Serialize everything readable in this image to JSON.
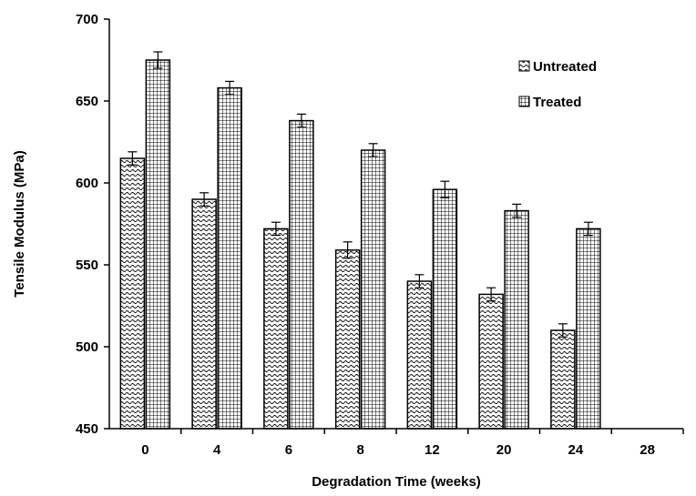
{
  "chart_data": {
    "type": "bar",
    "xlabel": "Degradation Time (weeks)",
    "ylabel": "Tensile Modulus (MPa)",
    "ylim": [
      450,
      700
    ],
    "yticks": [
      "450",
      "500",
      "550",
      "600",
      "650",
      "700"
    ],
    "categories": [
      "0",
      "4",
      "6",
      "8",
      "12",
      "20",
      "24",
      "28"
    ],
    "series": [
      {
        "name": "Untreated",
        "pattern": "wave",
        "values": [
          615,
          590,
          572,
          559,
          540,
          532,
          510,
          null
        ],
        "errors": [
          4,
          4,
          4,
          5,
          4,
          4,
          4,
          null
        ]
      },
      {
        "name": "Treated",
        "pattern": "grid",
        "values": [
          675,
          658,
          638,
          620,
          596,
          583,
          572,
          null
        ],
        "errors": [
          5,
          4,
          4,
          4,
          5,
          4,
          4,
          null
        ]
      }
    ],
    "legend_position": "top-right",
    "grid": false,
    "colors": {
      "bar_fill": "#ffffff",
      "pattern": "#000000",
      "axis": "#000000"
    }
  }
}
